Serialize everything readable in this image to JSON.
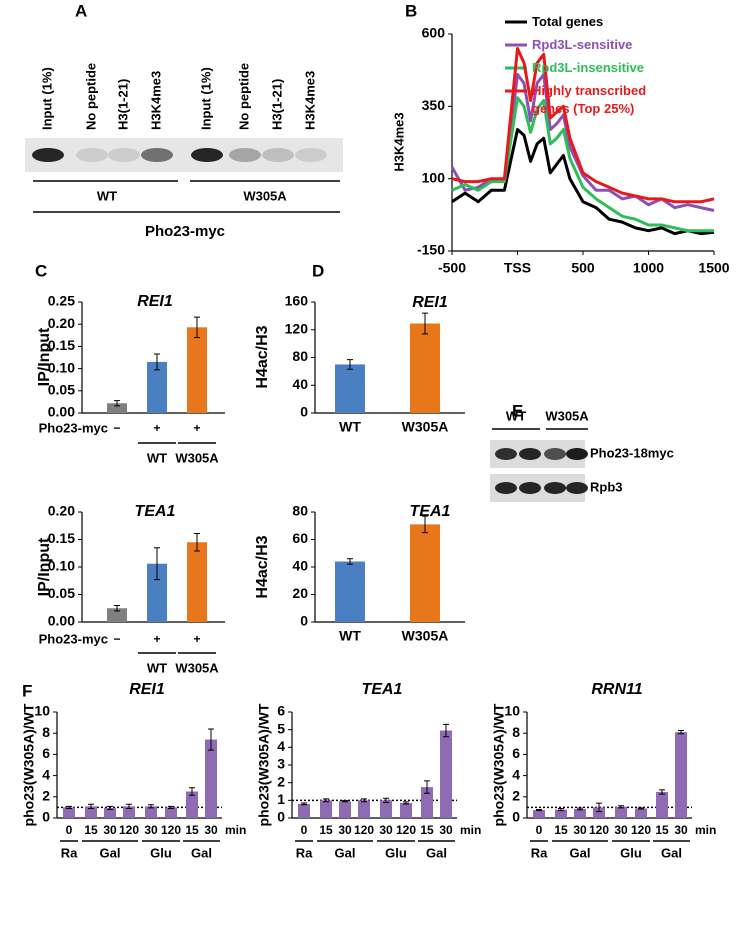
{
  "panel_labels": [
    "A",
    "B",
    "C",
    "D",
    "E",
    "F"
  ],
  "blot_a": {
    "lanes": [
      "Input (1%)",
      "No peptide",
      "H3(1-21)",
      "H3K4me3",
      "Input (1%)",
      "No peptide",
      "H3(1-21)",
      "H3K4me3"
    ],
    "groups": [
      "WT",
      "W305A"
    ],
    "label": "Pho23-myc"
  },
  "blot_e": {
    "groups": [
      "WT",
      "W305A"
    ],
    "rows": [
      "Pho23-18myc",
      "Rpb3"
    ]
  },
  "chart_data": [
    {
      "type": "line",
      "ylabel": "H3K4me3",
      "x": [
        -500,
        -400,
        -300,
        -200,
        -100,
        0,
        50,
        100,
        150,
        200,
        250,
        300,
        350,
        400,
        500,
        600,
        700,
        800,
        900,
        1000,
        1100,
        1200,
        1300,
        1400,
        1500
      ],
      "xlim": [
        -500,
        1500
      ],
      "xticks": [
        -500,
        {
          "value": 0,
          "label": "TSS"
        },
        500,
        1000,
        1500
      ],
      "ylim": [
        -150,
        600
      ],
      "yticks": [
        -150,
        100,
        350,
        600
      ],
      "series": [
        {
          "name": "Total genes",
          "color": "#000000",
          "values": [
            20,
            50,
            20,
            60,
            60,
            270,
            250,
            160,
            220,
            240,
            120,
            150,
            180,
            100,
            20,
            0,
            -40,
            -50,
            -70,
            -80,
            -70,
            -90,
            -80,
            -90,
            -85
          ]
        },
        {
          "name": "Rpd3L-sensitive",
          "color": "#8e4fb5",
          "values": [
            140,
            60,
            70,
            100,
            90,
            460,
            430,
            300,
            430,
            460,
            270,
            290,
            320,
            210,
            110,
            60,
            60,
            30,
            40,
            10,
            30,
            0,
            10,
            0,
            -10
          ]
        },
        {
          "name": "Rpd3L-insensitive",
          "color": "#2ebd59",
          "values": [
            60,
            80,
            60,
            90,
            90,
            380,
            350,
            260,
            340,
            370,
            220,
            240,
            270,
            170,
            70,
            30,
            0,
            -30,
            -40,
            -60,
            -60,
            -70,
            -80,
            -80,
            -80
          ]
        },
        {
          "name": "Highly transcribed genes (Top 25%)",
          "color": "#e8191e",
          "values": [
            100,
            90,
            90,
            100,
            100,
            550,
            500,
            370,
            500,
            530,
            310,
            330,
            350,
            240,
            120,
            90,
            70,
            50,
            40,
            30,
            30,
            20,
            20,
            20,
            30
          ]
        }
      ]
    },
    {
      "type": "bar",
      "title": "REI1",
      "ylabel": "IP/Input",
      "row_label": "Pho23-myc",
      "groups": [
        "WT",
        "W305A"
      ],
      "categories": [
        "−",
        "+",
        "+"
      ],
      "values": [
        0.022,
        0.115,
        0.193
      ],
      "errors": [
        0.006,
        0.018,
        0.023
      ],
      "colors": [
        "#808080",
        "#4a7fc1",
        "#e8761b"
      ],
      "ylim": [
        0,
        0.25
      ],
      "yticks": [
        {
          "value": 0,
          "label": "0.00"
        },
        {
          "value": 0.05,
          "label": "0.05"
        },
        {
          "value": 0.1,
          "label": "0.10"
        },
        {
          "value": 0.15,
          "label": "0.15"
        },
        {
          "value": 0.2,
          "label": "0.20"
        },
        {
          "value": 0.25,
          "label": "0.25"
        }
      ]
    },
    {
      "type": "bar",
      "title": "TEA1",
      "ylabel": "IP/Input",
      "row_label": "Pho23-myc",
      "groups": [
        "WT",
        "W305A"
      ],
      "categories": [
        "−",
        "+",
        "+"
      ],
      "values": [
        0.025,
        0.106,
        0.145
      ],
      "errors": [
        0.005,
        0.029,
        0.016
      ],
      "colors": [
        "#808080",
        "#4a7fc1",
        "#e8761b"
      ],
      "ylim": [
        0,
        0.2
      ],
      "yticks": [
        {
          "value": 0,
          "label": "0.00"
        },
        {
          "value": 0.05,
          "label": "0.05"
        },
        {
          "value": 0.1,
          "label": "0.10"
        },
        {
          "value": 0.15,
          "label": "0.15"
        },
        {
          "value": 0.2,
          "label": "0.20"
        }
      ]
    },
    {
      "type": "bar",
      "title": "REI1",
      "ylabel": "H4ac/H3",
      "categories": [
        "WT",
        "W305A"
      ],
      "values": [
        70,
        129
      ],
      "errors": [
        7,
        15
      ],
      "colors": [
        "#4a7fc1",
        "#e8761b"
      ],
      "ylim": [
        0,
        160
      ],
      "yticks": [
        0,
        40,
        80,
        120,
        160
      ]
    },
    {
      "type": "bar",
      "title": "TEA1",
      "ylabel": "H4ac/H3",
      "categories": [
        "WT",
        "W305A"
      ],
      "values": [
        44,
        71
      ],
      "errors": [
        2,
        6
      ],
      "colors": [
        "#4a7fc1",
        "#e8761b"
      ],
      "ylim": [
        0,
        80
      ],
      "yticks": [
        0,
        20,
        40,
        60,
        80
      ]
    },
    {
      "type": "bar",
      "title": "REI1",
      "ylabel": "pho23(W305A)/WT",
      "unit": "min",
      "groups": [
        "Ra",
        "Gal",
        "Glu",
        "Gal"
      ],
      "categories": [
        "0",
        "15",
        "30",
        "120",
        "30",
        "120",
        "15",
        "30"
      ],
      "values": [
        1.0,
        1.1,
        0.95,
        1.1,
        1.1,
        1.0,
        2.5,
        7.4
      ],
      "errors": [
        0.1,
        0.2,
        0.15,
        0.2,
        0.15,
        0.1,
        0.35,
        1.0
      ],
      "color": "#8e6bb3",
      "refline": 1,
      "ylim": [
        0,
        10
      ],
      "yticks": [
        0,
        2,
        4,
        6,
        8,
        10
      ]
    },
    {
      "type": "bar",
      "title": "TEA1",
      "ylabel": "pho23(W305A)/WT",
      "unit": "min",
      "groups": [
        "Ra",
        "Gal",
        "Glu",
        "Gal"
      ],
      "categories": [
        "0",
        "15",
        "30",
        "120",
        "30",
        "120",
        "15",
        "30"
      ],
      "values": [
        0.8,
        1.0,
        0.95,
        1.0,
        1.0,
        0.85,
        1.75,
        4.95
      ],
      "errors": [
        0.05,
        0.08,
        0.03,
        0.08,
        0.12,
        0.06,
        0.35,
        0.35
      ],
      "color": "#8e6bb3",
      "refline": 1,
      "ylim": [
        0,
        6
      ],
      "yticks": [
        0,
        1,
        2,
        3,
        4,
        5,
        6
      ]
    },
    {
      "type": "bar",
      "title": "RRN11",
      "ylabel": "pho23(W305A)/WT",
      "unit": "min",
      "groups": [
        "Ra",
        "Gal",
        "Glu",
        "Gal"
      ],
      "categories": [
        "0",
        "15",
        "30",
        "120",
        "30",
        "120",
        "15",
        "30"
      ],
      "values": [
        0.75,
        0.8,
        0.85,
        1.0,
        1.05,
        0.9,
        2.45,
        8.1
      ],
      "errors": [
        0.05,
        0.1,
        0.08,
        0.4,
        0.1,
        0.05,
        0.2,
        0.15
      ],
      "color": "#8e6bb3",
      "refline": 1,
      "ylim": [
        0,
        10
      ],
      "yticks": [
        0,
        2,
        4,
        6,
        8,
        10
      ]
    }
  ]
}
